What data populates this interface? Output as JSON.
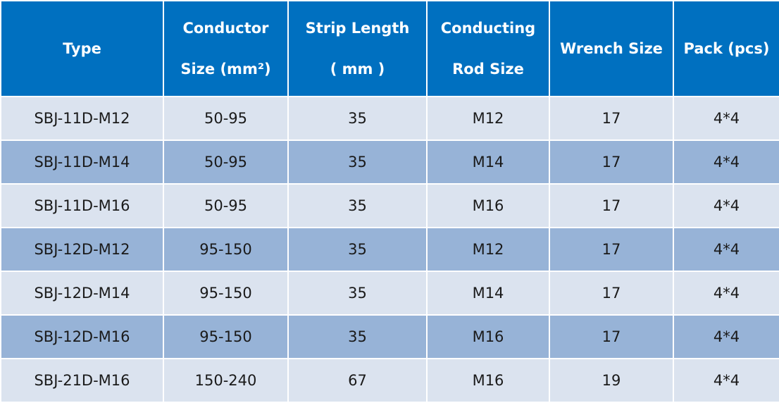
{
  "table": {
    "header": [
      [
        "Type"
      ],
      [
        "Conductor",
        "Size (mm²)"
      ],
      [
        "Strip Length",
        "( mm )"
      ],
      [
        "Conducting",
        "Rod Size"
      ],
      [
        "Wrench Size"
      ],
      [
        "Pack (pcs)"
      ]
    ],
    "rows": [
      [
        "SBJ-11D-M12",
        "50-95",
        "35",
        "M12",
        "17",
        "4*4"
      ],
      [
        "SBJ-11D-M14",
        "50-95",
        "35",
        "M14",
        "17",
        "4*4"
      ],
      [
        "SBJ-11D-M16",
        "50-95",
        "35",
        "M16",
        "17",
        "4*4"
      ],
      [
        "SBJ-12D-M12",
        "95-150",
        "35",
        "M12",
        "17",
        "4*4"
      ],
      [
        "SBJ-12D-M14",
        "95-150",
        "35",
        "M14",
        "17",
        "4*4"
      ],
      [
        "SBJ-12D-M16",
        "95-150",
        "35",
        "M16",
        "17",
        "4*4"
      ],
      [
        "SBJ-21D-M16",
        "150-240",
        "67",
        "M16",
        "19",
        "4*4"
      ]
    ]
  }
}
